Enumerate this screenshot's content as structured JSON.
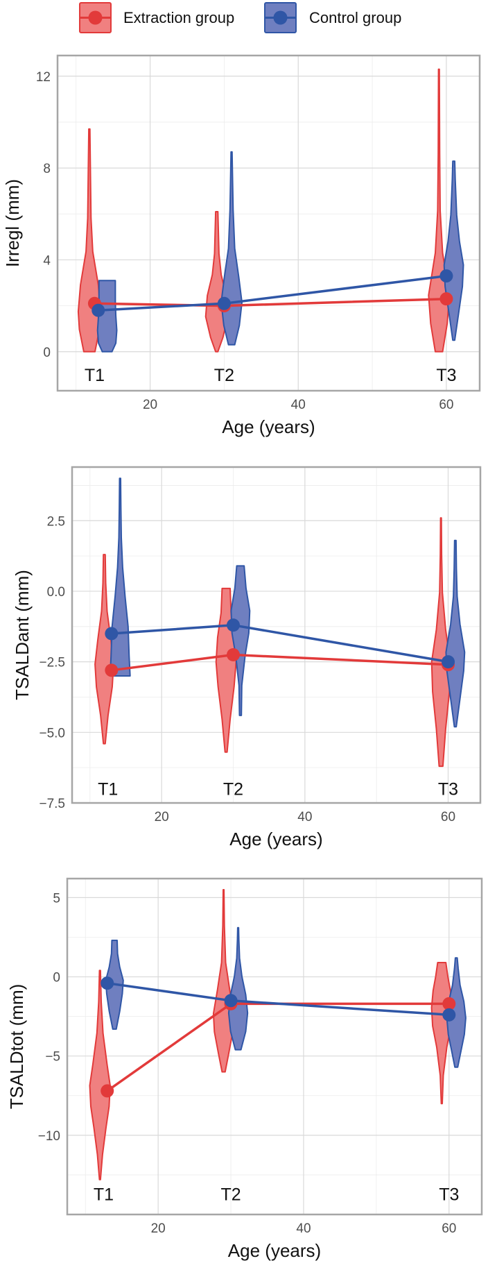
{
  "legend": {
    "items": [
      {
        "label": "Extraction group",
        "color": "#e23a3a",
        "fill": "#f08080"
      },
      {
        "label": "Control group",
        "color": "#2f56a6",
        "fill": "#6f7fc0"
      }
    ]
  },
  "chart_data": [
    {
      "type": "violin-line",
      "xlabel": "Age (years)",
      "ylabel": "Irregl (mm)",
      "xlim": [
        7.5,
        64.5
      ],
      "ylim": [
        -1.7,
        12.9
      ],
      "xticks": [
        20,
        40,
        60
      ],
      "yticks": [
        0,
        4,
        8,
        12
      ],
      "yticklabels": [
        "0",
        "4",
        "8",
        "12"
      ],
      "time_labels": [
        {
          "label": "T1",
          "x": 12.5,
          "y": -1.0
        },
        {
          "label": "T2",
          "x": 30,
          "y": -1.0
        },
        {
          "label": "T3",
          "x": 60,
          "y": -1.0
        }
      ],
      "series": [
        {
          "name": "Extraction group",
          "x": [
            12.5,
            30,
            60
          ],
          "means": [
            2.1,
            2.0,
            2.3
          ],
          "violins": [
            {
              "x": 11.8,
              "min": 0,
              "max": 9.7,
              "profile": [
                [
                  0,
                  0.5
                ],
                [
                  0.1,
                  0.9
                ],
                [
                  0.18,
                  1.0
                ],
                [
                  0.3,
                  0.8
                ],
                [
                  0.45,
                  0.3
                ],
                [
                  0.6,
                  0.15
                ],
                [
                  0.8,
                  0.1
                ],
                [
                  1,
                  0.05
                ]
              ],
              "width": 1.5
            },
            {
              "x": 29.0,
              "min": 0,
              "max": 6.1,
              "profile": [
                [
                  0,
                  0.1
                ],
                [
                  0.1,
                  0.55
                ],
                [
                  0.25,
                  1.0
                ],
                [
                  0.4,
                  0.85
                ],
                [
                  0.55,
                  0.4
                ],
                [
                  0.7,
                  0.2
                ],
                [
                  0.85,
                  0.15
                ],
                [
                  1,
                  0.1
                ]
              ],
              "width": 1.5
            },
            {
              "x": 59.0,
              "min": 0,
              "max": 12.3,
              "profile": [
                [
                  0,
                  0.35
                ],
                [
                  0.1,
                  0.8
                ],
                [
                  0.2,
                  1.0
                ],
                [
                  0.35,
                  0.35
                ],
                [
                  0.5,
                  0.12
                ],
                [
                  0.7,
                  0.07
                ],
                [
                  1,
                  0.04
                ]
              ],
              "width": 1.4
            }
          ]
        },
        {
          "name": "Control group",
          "x": [
            13.0,
            30,
            60
          ],
          "means": [
            1.8,
            2.1,
            3.3
          ],
          "violins": [
            {
              "x": 14.2,
              "min": 0,
              "max": 3.1,
              "profile": [
                [
                  0,
                  0.5
                ],
                [
                  0.12,
                  0.9
                ],
                [
                  0.3,
                  1.0
                ],
                [
                  0.5,
                  0.9
                ],
                [
                  0.7,
                  0.85
                ],
                [
                  0.9,
                  0.85
                ],
                [
                  1,
                  0.85
                ]
              ],
              "width": 1.3
            },
            {
              "x": 31.0,
              "min": 0.3,
              "max": 8.7,
              "profile": [
                [
                  0,
                  0.3
                ],
                [
                  0.1,
                  0.75
                ],
                [
                  0.22,
                  1.0
                ],
                [
                  0.35,
                  0.7
                ],
                [
                  0.5,
                  0.3
                ],
                [
                  0.7,
                  0.15
                ],
                [
                  1,
                  0.05
                ]
              ],
              "width": 1.4
            },
            {
              "x": 61.0,
              "min": 0.5,
              "max": 8.3,
              "profile": [
                [
                  0,
                  0.1
                ],
                [
                  0.15,
                  0.5
                ],
                [
                  0.3,
                  0.9
                ],
                [
                  0.42,
                  1.0
                ],
                [
                  0.55,
                  0.6
                ],
                [
                  0.7,
                  0.3
                ],
                [
                  0.9,
                  0.15
                ],
                [
                  1,
                  0.1
                ]
              ],
              "width": 1.3
            }
          ]
        }
      ]
    },
    {
      "type": "violin-line",
      "xlabel": "Age (years)",
      "ylabel": "TSALDant (mm)",
      "xlim": [
        7.5,
        64.5
      ],
      "ylim": [
        -7.5,
        4.4
      ],
      "xticks": [
        20,
        40,
        60
      ],
      "yticks": [
        2.5,
        0,
        -2.5,
        -5,
        -7.5
      ],
      "yticklabels": [
        "2.5",
        "0.0",
        "−2.5",
        "−5.0",
        "−7.5"
      ],
      "time_labels": [
        {
          "label": "T1",
          "x": 12.5,
          "y": -7.0
        },
        {
          "label": "T2",
          "x": 30,
          "y": -7.0
        },
        {
          "label": "T3",
          "x": 60,
          "y": -7.0
        }
      ],
      "series": [
        {
          "name": "Extraction group",
          "x": [
            13.0,
            30,
            60
          ],
          "means": [
            -2.8,
            -2.25,
            -2.6
          ],
          "violins": [
            {
              "x": 12.0,
              "min": -5.4,
              "max": 1.3,
              "profile": [
                [
                  0,
                  0.1
                ],
                [
                  0.15,
                  0.4
                ],
                [
                  0.3,
                  0.85
                ],
                [
                  0.42,
                  1.0
                ],
                [
                  0.55,
                  0.7
                ],
                [
                  0.7,
                  0.3
                ],
                [
                  0.85,
                  0.15
                ],
                [
                  1,
                  0.1
                ]
              ],
              "width": 1.3
            },
            {
              "x": 29.0,
              "min": -5.7,
              "max": 0.1,
              "profile": [
                [
                  0,
                  0.1
                ],
                [
                  0.2,
                  0.4
                ],
                [
                  0.4,
                  0.8
                ],
                [
                  0.55,
                  1.0
                ],
                [
                  0.7,
                  0.85
                ],
                [
                  0.85,
                  0.5
                ],
                [
                  1,
                  0.4
                ]
              ],
              "width": 1.4
            },
            {
              "x": 59.0,
              "min": -6.2,
              "max": 2.6,
              "profile": [
                [
                  0,
                  0.2
                ],
                [
                  0.15,
                  0.5
                ],
                [
                  0.3,
                  0.9
                ],
                [
                  0.42,
                  1.0
                ],
                [
                  0.55,
                  0.5
                ],
                [
                  0.7,
                  0.15
                ],
                [
                  0.85,
                  0.07
                ],
                [
                  1,
                  0.04
                ]
              ],
              "width": 1.3
            }
          ]
        },
        {
          "name": "Control group",
          "x": [
            13.0,
            30,
            60
          ],
          "means": [
            -1.5,
            -1.2,
            -2.5
          ],
          "violins": [
            {
              "x": 14.2,
              "min": -3.0,
              "max": 4.0,
              "profile": [
                [
                  0,
                  1.0
                ],
                [
                  0.1,
                  0.9
                ],
                [
                  0.25,
                  0.8
                ],
                [
                  0.4,
                  0.5
                ],
                [
                  0.55,
                  0.25
                ],
                [
                  0.7,
                  0.12
                ],
                [
                  0.85,
                  0.08
                ],
                [
                  1,
                  0.05
                ]
              ],
              "width": 1.4
            },
            {
              "x": 31.0,
              "min": -4.4,
              "max": 0.9,
              "profile": [
                [
                  0,
                  0.1
                ],
                [
                  0.2,
                  0.15
                ],
                [
                  0.4,
                  0.5
                ],
                [
                  0.55,
                  0.9
                ],
                [
                  0.7,
                  1.0
                ],
                [
                  0.85,
                  0.6
                ],
                [
                  1,
                  0.4
                ]
              ],
              "width": 1.3
            },
            {
              "x": 61.0,
              "min": -4.8,
              "max": 1.8,
              "profile": [
                [
                  0,
                  0.1
                ],
                [
                  0.15,
                  0.5
                ],
                [
                  0.3,
                  0.9
                ],
                [
                  0.4,
                  1.0
                ],
                [
                  0.55,
                  0.5
                ],
                [
                  0.7,
                  0.2
                ],
                [
                  0.85,
                  0.12
                ],
                [
                  1,
                  0.08
                ]
              ],
              "width": 1.3
            }
          ]
        }
      ]
    },
    {
      "type": "violin-line",
      "xlabel": "Age (years)",
      "ylabel": "TSALDtot (mm)",
      "xlim": [
        7.5,
        64.5
      ],
      "ylim": [
        -15.0,
        6.2
      ],
      "xticks": [
        20,
        40,
        60
      ],
      "yticks": [
        5,
        0,
        -5,
        -10
      ],
      "yticklabels": [
        "5",
        "0",
        "−5",
        "−10"
      ],
      "time_labels": [
        {
          "label": "T1",
          "x": 12.5,
          "y": -13.7
        },
        {
          "label": "T2",
          "x": 30,
          "y": -13.7
        },
        {
          "label": "T3",
          "x": 60,
          "y": -13.7
        }
      ],
      "series": [
        {
          "name": "Extraction group",
          "x": [
            13.0,
            30,
            60
          ],
          "means": [
            -7.2,
            -1.7,
            -1.7
          ],
          "violins": [
            {
              "x": 12.0,
              "min": -12.8,
              "max": 0.4,
              "profile": [
                [
                  0,
                  0.05
                ],
                [
                  0.12,
                  0.25
                ],
                [
                  0.25,
                  0.6
                ],
                [
                  0.35,
                  0.9
                ],
                [
                  0.45,
                  1.0
                ],
                [
                  0.55,
                  0.7
                ],
                [
                  0.7,
                  0.3
                ],
                [
                  0.85,
                  0.12
                ],
                [
                  1,
                  0.05
                ]
              ],
              "width": 1.4
            },
            {
              "x": 29.0,
              "min": -6.0,
              "max": 5.5,
              "profile": [
                [
                  0,
                  0.15
                ],
                [
                  0.1,
                  0.5
                ],
                [
                  0.22,
                  0.9
                ],
                [
                  0.32,
                  1.0
                ],
                [
                  0.45,
                  0.6
                ],
                [
                  0.6,
                  0.2
                ],
                [
                  0.8,
                  0.08
                ],
                [
                  1,
                  0.04
                ]
              ],
              "width": 1.4
            },
            {
              "x": 59.0,
              "min": -8.0,
              "max": 0.9,
              "profile": [
                [
                  0,
                  0.05
                ],
                [
                  0.2,
                  0.15
                ],
                [
                  0.4,
                  0.5
                ],
                [
                  0.55,
                  0.9
                ],
                [
                  0.68,
                  1.0
                ],
                [
                  0.8,
                  0.85
                ],
                [
                  0.9,
                  0.6
                ],
                [
                  1,
                  0.4
                ]
              ],
              "width": 1.4
            }
          ]
        },
        {
          "name": "Control group",
          "x": [
            13.0,
            30,
            60
          ],
          "means": [
            -0.4,
            -1.5,
            -2.4
          ],
          "violins": [
            {
              "x": 14.0,
              "min": -3.3,
              "max": 2.3,
              "profile": [
                [
                  0,
                  0.2
                ],
                [
                  0.2,
                  0.6
                ],
                [
                  0.4,
                  0.9
                ],
                [
                  0.55,
                  1.0
                ],
                [
                  0.7,
                  0.6
                ],
                [
                  0.85,
                  0.35
                ],
                [
                  1,
                  0.3
                ]
              ],
              "width": 1.2
            },
            {
              "x": 31.0,
              "min": -4.6,
              "max": 3.1,
              "profile": [
                [
                  0,
                  0.3
                ],
                [
                  0.15,
                  0.8
                ],
                [
                  0.3,
                  1.0
                ],
                [
                  0.45,
                  0.8
                ],
                [
                  0.6,
                  0.4
                ],
                [
                  0.75,
                  0.15
                ],
                [
                  0.9,
                  0.08
                ],
                [
                  1,
                  0.05
                ]
              ],
              "width": 1.3
            },
            {
              "x": 61.0,
              "min": -5.7,
              "max": 1.2,
              "profile": [
                [
                  0,
                  0.15
                ],
                [
                  0.15,
                  0.5
                ],
                [
                  0.3,
                  0.85
                ],
                [
                  0.45,
                  1.0
                ],
                [
                  0.6,
                  0.8
                ],
                [
                  0.75,
                  0.4
                ],
                [
                  0.9,
                  0.2
                ],
                [
                  1,
                  0.1
                ]
              ],
              "width": 1.3
            }
          ]
        }
      ]
    }
  ]
}
